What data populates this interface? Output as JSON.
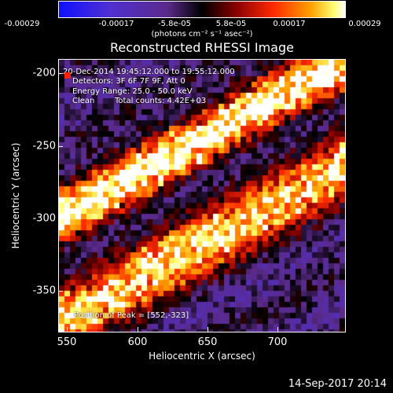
{
  "colorbar": {
    "ticks": [
      "-0.00029",
      "-0.00017",
      "-5.8e-05",
      "5.8e-05",
      "0.00017",
      "0.00029"
    ],
    "units": "(photons cm⁻² s⁻¹ asec⁻²)",
    "min": -0.00029,
    "max": 0.00029,
    "colors": [
      "#1010ff",
      "#4a30d8",
      "#6a3aa8",
      "#000000",
      "#8a0000",
      "#ff2000",
      "#ff9000",
      "#ffff60",
      "#ffffff"
    ]
  },
  "title": "Reconstructed RHESSI Image",
  "annotations": {
    "time_range": "20-Dec-2014 19:45:12.000 to 19:55:12.000",
    "detectors": "Detectors: 3F 6F 7F 9F, Att 0",
    "energy": "Energy Range: 25.0 - 50.0 keV",
    "method": "Clean",
    "counts": "Total counts: 4.42E+03",
    "peak": "Position of Peak = [552,-323]"
  },
  "axes": {
    "xlabel": "Heliocentric X (arcsec)",
    "ylabel": "Heliocentric Y (arcsec)",
    "xticks": [
      "550",
      "600",
      "650",
      "700"
    ],
    "yticks": [
      "-200",
      "-250",
      "-300",
      "-350"
    ],
    "xlim": [
      550,
      740
    ],
    "ylim": [
      -382,
      -185
    ]
  },
  "timestamp": "14-Sep-2017 20:14"
}
